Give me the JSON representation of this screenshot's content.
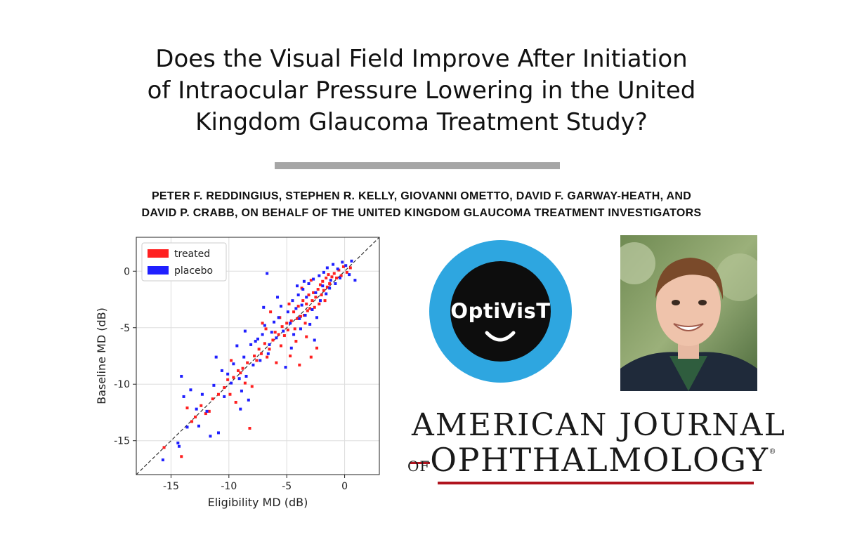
{
  "title": {
    "line1": "Does the Visual Field Improve After Initiation",
    "line2": "of Intraocular Pressure Lowering in the United",
    "line3": "Kingdom Glaucoma Treatment Study?"
  },
  "authors": {
    "line1": "PETER F. REDDINGIUS, STEPHEN R. KELLY, GIOVANNI OMETTO, DAVID F. GARWAY-HEATH, AND",
    "line2": "DAVID P. CRABB, ON BEHALF OF THE UNITED KINGDOM GLAUCOMA TREATMENT INVESTIGATORS"
  },
  "logo": {
    "text": "OptiVisT",
    "ring_color": "#2ea6e0",
    "center_color": "#0d0d0d"
  },
  "journal": {
    "line1": "AMERICAN JOURNAL",
    "of": "OF",
    "line2": "OPHTHALMOLOGY",
    "registered": "®",
    "accent_color": "#b0131e"
  },
  "photo": {
    "alt": "portrait photo"
  },
  "chart_data": {
    "type": "scatter",
    "xlabel": "Eligibility MD (dB)",
    "ylabel": "Baseline MD (dB)",
    "xlim": [
      -18,
      3
    ],
    "ylim": [
      -18,
      3
    ],
    "xticks": [
      -15,
      -10,
      -5,
      0
    ],
    "yticks": [
      -15,
      -10,
      -5,
      0
    ],
    "grid": true,
    "legend_position": "top-left",
    "identity_line": true,
    "series": [
      {
        "name": "treated",
        "color": "#ff2020",
        "points": [
          [
            -15.6,
            -15.6
          ],
          [
            -14.1,
            -16.4
          ],
          [
            -13.2,
            -13.3
          ],
          [
            -12.9,
            -12.9
          ],
          [
            -12.4,
            -11.9
          ],
          [
            -12.0,
            -12.6
          ],
          [
            -11.4,
            -11.3
          ],
          [
            -10.9,
            -10.9
          ],
          [
            -10.4,
            -10.3
          ],
          [
            -10.1,
            -9.6
          ],
          [
            -9.9,
            -10.9
          ],
          [
            -9.6,
            -9.4
          ],
          [
            -9.4,
            -11.6
          ],
          [
            -9.2,
            -8.8
          ],
          [
            -9.0,
            -9.0
          ],
          [
            -8.8,
            -8.6
          ],
          [
            -8.6,
            -9.9
          ],
          [
            -8.4,
            -8.1
          ],
          [
            -8.2,
            -13.9
          ],
          [
            -8.0,
            -10.2
          ],
          [
            -7.8,
            -7.5
          ],
          [
            -7.6,
            -7.9
          ],
          [
            -7.4,
            -6.9
          ],
          [
            -7.2,
            -7.3
          ],
          [
            -7.1,
            -4.6
          ],
          [
            -6.9,
            -6.4
          ],
          [
            -6.7,
            -7.6
          ],
          [
            -6.5,
            -6.9
          ],
          [
            -6.4,
            -3.6
          ],
          [
            -6.2,
            -6.1
          ],
          [
            -6.0,
            -5.4
          ],
          [
            -5.9,
            -8.1
          ],
          [
            -5.7,
            -5.6
          ],
          [
            -5.5,
            -6.6
          ],
          [
            -5.4,
            -4.9
          ],
          [
            -5.2,
            -5.7
          ],
          [
            -5.0,
            -4.6
          ],
          [
            -4.9,
            -5.2
          ],
          [
            -4.7,
            -7.5
          ],
          [
            -4.6,
            -4.4
          ],
          [
            -4.4,
            -3.6
          ],
          [
            -4.3,
            -5.1
          ],
          [
            -4.1,
            -4.2
          ],
          [
            -4.0,
            -3.1
          ],
          [
            -3.9,
            -8.3
          ],
          [
            -3.8,
            -4.0
          ],
          [
            -3.6,
            -2.6
          ],
          [
            -3.5,
            -3.9
          ],
          [
            -3.4,
            -4.6
          ],
          [
            -3.3,
            -2.9
          ],
          [
            -3.2,
            -3.5
          ],
          [
            -3.1,
            -2.1
          ],
          [
            -3.0,
            -3.3
          ],
          [
            -2.9,
            -7.6
          ],
          [
            -2.8,
            -2.6
          ],
          [
            -2.7,
            -1.9
          ],
          [
            -2.6,
            -3.2
          ],
          [
            -2.5,
            -2.3
          ],
          [
            -2.4,
            -6.8
          ],
          [
            -2.3,
            -1.6
          ],
          [
            -2.2,
            -2.9
          ],
          [
            -2.1,
            -1.2
          ],
          [
            -2.0,
            -2.1
          ],
          [
            -1.9,
            -0.9
          ],
          [
            -1.8,
            -1.7
          ],
          [
            -1.7,
            -2.6
          ],
          [
            -1.6,
            -0.6
          ],
          [
            -1.5,
            -1.4
          ],
          [
            -1.4,
            -0.3
          ],
          [
            -1.3,
            -1.1
          ],
          [
            -1.1,
            -0.5
          ],
          [
            -0.9,
            -0.2
          ],
          [
            -0.7,
            -0.6
          ],
          [
            -0.5,
            0.1
          ],
          [
            -0.3,
            -0.4
          ],
          [
            -0.1,
            0.4
          ],
          [
            0.2,
            -0.1
          ],
          [
            0.5,
            0.3
          ],
          [
            -3.7,
            -1.5
          ],
          [
            -4.8,
            -2.9
          ],
          [
            -5.6,
            -4.1
          ],
          [
            -2.9,
            -0.8
          ],
          [
            -3.3,
            -5.8
          ],
          [
            -4.2,
            -6.2
          ],
          [
            -6.8,
            -5.1
          ],
          [
            -11.7,
            -12.4
          ],
          [
            -13.6,
            -12.1
          ],
          [
            -9.8,
            -7.9
          ]
        ]
      },
      {
        "name": "placebo",
        "color": "#2020ff",
        "points": [
          [
            -15.7,
            -16.7
          ],
          [
            -14.4,
            -15.2
          ],
          [
            -14.3,
            -15.5
          ],
          [
            -14.1,
            -9.3
          ],
          [
            -13.9,
            -11.1
          ],
          [
            -13.6,
            -13.8
          ],
          [
            -13.3,
            -10.5
          ],
          [
            -12.8,
            -12.2
          ],
          [
            -12.3,
            -10.9
          ],
          [
            -11.9,
            -12.4
          ],
          [
            -11.6,
            -14.6
          ],
          [
            -11.3,
            -10.1
          ],
          [
            -11.1,
            -7.6
          ],
          [
            -10.9,
            -14.3
          ],
          [
            -10.6,
            -8.8
          ],
          [
            -10.4,
            -11.1
          ],
          [
            -10.1,
            -9.1
          ],
          [
            -9.8,
            -9.9
          ],
          [
            -9.6,
            -8.2
          ],
          [
            -9.3,
            -6.6
          ],
          [
            -9.1,
            -9.5
          ],
          [
            -8.9,
            -10.6
          ],
          [
            -8.7,
            -7.6
          ],
          [
            -8.5,
            -9.3
          ],
          [
            -8.3,
            -11.4
          ],
          [
            -8.1,
            -6.5
          ],
          [
            -7.9,
            -8.3
          ],
          [
            -7.7,
            -6.2
          ],
          [
            -7.5,
            -6.0
          ],
          [
            -7.3,
            -7.9
          ],
          [
            -7.1,
            -5.6
          ],
          [
            -6.9,
            -4.8
          ],
          [
            -6.7,
            -0.2
          ],
          [
            -6.5,
            -6.5
          ],
          [
            -6.3,
            -5.4
          ],
          [
            -6.1,
            -4.5
          ],
          [
            -5.9,
            -5.9
          ],
          [
            -5.7,
            -4.1
          ],
          [
            -5.5,
            -3.1
          ],
          [
            -5.3,
            -5.3
          ],
          [
            -5.1,
            -8.5
          ],
          [
            -4.9,
            -3.6
          ],
          [
            -4.7,
            -4.6
          ],
          [
            -4.5,
            -2.6
          ],
          [
            -4.4,
            -5.6
          ],
          [
            -4.2,
            -3.3
          ],
          [
            -4.0,
            -2.1
          ],
          [
            -3.9,
            -4.2
          ],
          [
            -3.7,
            -3.0
          ],
          [
            -3.6,
            -1.6
          ],
          [
            -3.4,
            -3.9
          ],
          [
            -3.3,
            -2.3
          ],
          [
            -3.1,
            -1.1
          ],
          [
            -3.0,
            -4.7
          ],
          [
            -2.8,
            -3.4
          ],
          [
            -2.7,
            -0.7
          ],
          [
            -2.5,
            -1.9
          ],
          [
            -2.4,
            -4.1
          ],
          [
            -2.2,
            -0.4
          ],
          [
            -2.1,
            -2.6
          ],
          [
            -1.9,
            -1.3
          ],
          [
            -1.8,
            -0.1
          ],
          [
            -1.6,
            -2.0
          ],
          [
            -1.5,
            0.3
          ],
          [
            -1.3,
            -1.5
          ],
          [
            -1.2,
            -0.8
          ],
          [
            -1.0,
            0.6
          ],
          [
            -0.8,
            -1.1
          ],
          [
            -0.6,
            0.2
          ],
          [
            -0.4,
            -0.6
          ],
          [
            -0.2,
            0.8
          ],
          [
            0.1,
            0.5
          ],
          [
            0.4,
            -0.3
          ],
          [
            0.6,
            0.9
          ],
          [
            0.9,
            -0.8
          ],
          [
            -5.8,
            -2.3
          ],
          [
            -4.6,
            -6.8
          ],
          [
            -3.8,
            -5.1
          ],
          [
            -6.6,
            -7.3
          ],
          [
            -12.6,
            -13.7
          ],
          [
            -9.0,
            -12.2
          ],
          [
            -2.6,
            -6.1
          ],
          [
            -3.5,
            -0.9
          ],
          [
            -7.0,
            -3.2
          ],
          [
            -4.1,
            -1.3
          ],
          [
            -8.6,
            -5.3
          ]
        ]
      }
    ]
  }
}
